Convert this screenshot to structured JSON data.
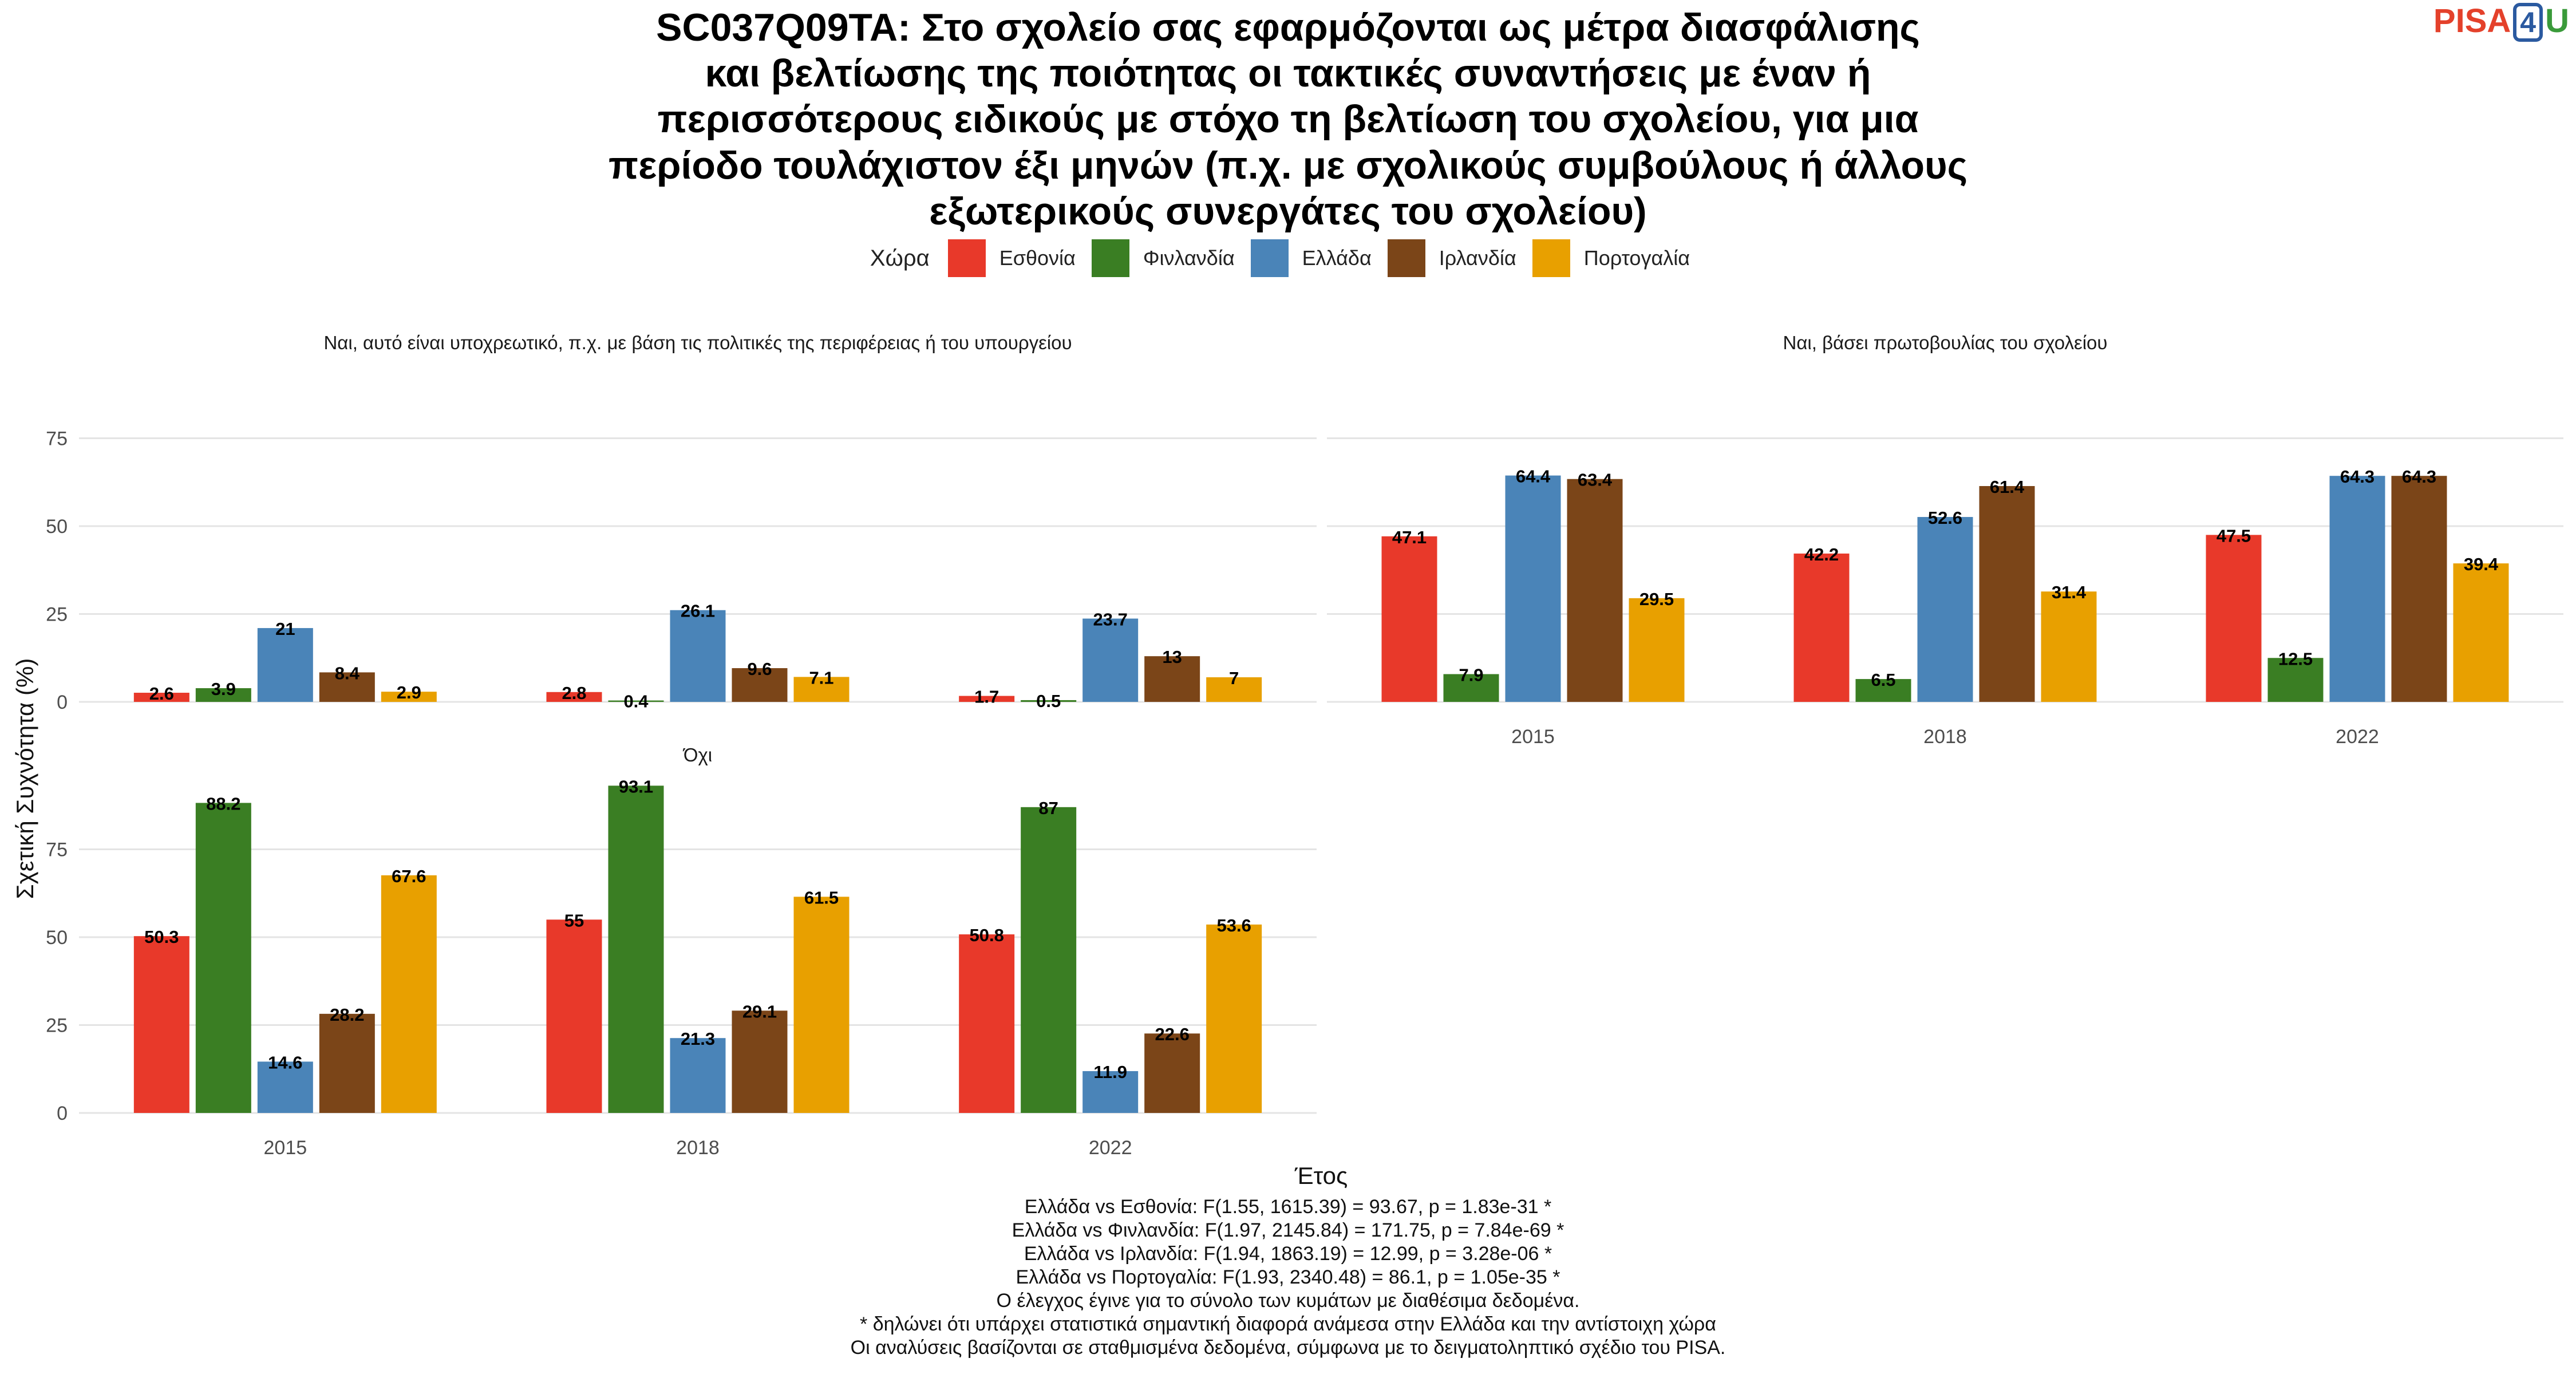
{
  "title": "SC037Q09TA: Στο σχολείο σας εφαρμόζονται ως μέτρα διασφάλισης\nκαι βελτίωσης της ποιότητας οι τακτικές συναντήσεις με έναν ή\nπερισσότερους ειδικούς με στόχο τη βελτίωση του σχολείου, για μια\nπερίοδο τουλάχιστον έξι μηνών (π.χ. με σχολικούς συμβούλους ή άλλους\nεξωτερικούς συνεργάτες του σχολείου)",
  "logo": {
    "pisa": "PISA",
    "four": "4",
    "u": "U"
  },
  "legend": {
    "title": "Χώρα",
    "items": [
      {
        "label": "Εσθονία",
        "color": "#e8392a"
      },
      {
        "label": "Φινλανδία",
        "color": "#3a7e23"
      },
      {
        "label": "Ελλάδα",
        "color": "#4a84b8"
      },
      {
        "label": "Ιρλανδία",
        "color": "#7b4518"
      },
      {
        "label": "Πορτογαλία",
        "color": "#e8a000"
      }
    ]
  },
  "chart_data": {
    "type": "bar",
    "ylabel": "Σχετική Συχνότητα (%)",
    "xlabel": "Έτος",
    "categories": [
      "2015",
      "2018",
      "2022"
    ],
    "yticks": [
      0,
      25,
      50,
      75
    ],
    "ylim": [
      0,
      95
    ],
    "series_names": [
      "Εσθονία",
      "Φινλανδία",
      "Ελλάδα",
      "Ιρλανδία",
      "Πορτογαλία"
    ],
    "panels": [
      {
        "title": "Ναι, αυτό είναι υποχρεωτικό, π.χ. με βάση τις πολιτικές της περιφέρειας ή του υπουργείου",
        "values": [
          [
            2.6,
            3.9,
            21,
            8.4,
            2.9
          ],
          [
            2.8,
            0.4,
            26.1,
            9.6,
            7.1
          ],
          [
            1.7,
            0.5,
            23.7,
            13,
            7
          ]
        ]
      },
      {
        "title": "Ναι, βάσει πρωτοβουλίας του σχολείου",
        "values": [
          [
            47.1,
            7.9,
            64.4,
            63.4,
            29.5
          ],
          [
            42.2,
            6.5,
            52.6,
            61.4,
            31.4
          ],
          [
            47.5,
            12.5,
            64.3,
            64.3,
            39.4
          ]
        ]
      },
      {
        "title": "Όχι",
        "values": [
          [
            50.3,
            88.2,
            14.6,
            28.2,
            67.6
          ],
          [
            55,
            93.1,
            21.3,
            29.1,
            61.5
          ],
          [
            50.8,
            87,
            11.9,
            22.6,
            53.6
          ]
        ]
      }
    ]
  },
  "notes": [
    "Ελλάδα vs Εσθονία: F(1.55, 1615.39) = 93.67, p = 1.83e-31 *",
    "Ελλάδα vs Φινλανδία: F(1.97, 2145.84) = 171.75, p = 7.84e-69 *",
    "Ελλάδα vs Ιρλανδία: F(1.94, 1863.19) = 12.99, p = 3.28e-06 *",
    "Ελλάδα vs Πορτογαλία: F(1.93, 2340.48) = 86.1, p = 1.05e-35 *",
    "Ο έλεγχος έγινε για το σύνολο των κυμάτων με διαθέσιμα δεδομένα.",
    "* δηλώνει ότι υπάρχει στατιστικά σημαντική διαφορά ανάμεσα στην Ελλάδα και την αντίστοιχη χώρα",
    "Οι αναλύσεις βασίζονται σε σταθμισμένα δεδομένα, σύμφωνα με το δειγματοληπτικό σχέδιο του PISA."
  ]
}
